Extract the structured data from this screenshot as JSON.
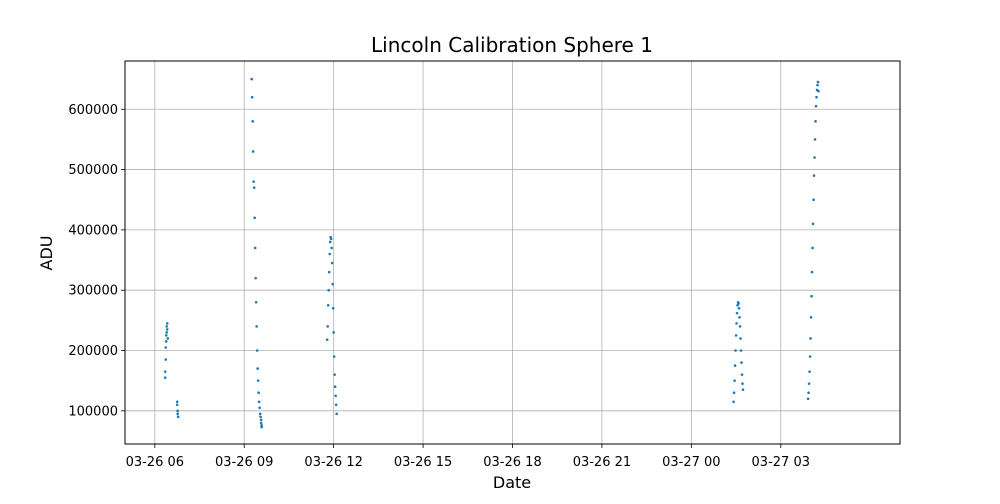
{
  "chart_data": {
    "type": "scatter",
    "title": "Lincoln Calibration Sphere 1",
    "xlabel": "Date",
    "ylabel": "ADU",
    "x_axis_type": "datetime",
    "xlim": [
      "2024-03-26 05:00",
      "2024-03-27 07:00"
    ],
    "ylim": [
      45000,
      680000
    ],
    "grid": true,
    "marker_color": "#1f77b4",
    "x_ticks": [
      {
        "value": "2024-03-26 06:00",
        "label": "03-26 06"
      },
      {
        "value": "2024-03-26 09:00",
        "label": "03-26 09"
      },
      {
        "value": "2024-03-26 12:00",
        "label": "03-26 12"
      },
      {
        "value": "2024-03-26 15:00",
        "label": "03-26 15"
      },
      {
        "value": "2024-03-26 18:00",
        "label": "03-26 18"
      },
      {
        "value": "2024-03-26 21:00",
        "label": "03-26 21"
      },
      {
        "value": "2024-03-27 00:00",
        "label": "03-27 00"
      },
      {
        "value": "2024-03-27 03:00",
        "label": "03-27 03"
      }
    ],
    "y_ticks": [
      {
        "value": 100000,
        "label": "100000"
      },
      {
        "value": 200000,
        "label": "200000"
      },
      {
        "value": 300000,
        "label": "300000"
      },
      {
        "value": 400000,
        "label": "400000"
      },
      {
        "value": 500000,
        "label": "500000"
      },
      {
        "value": 600000,
        "label": "600000"
      }
    ],
    "series": [
      {
        "x": [
          "2024-03-26 06:21",
          "2024-03-26 06:21",
          "2024-03-26 06:22",
          "2024-03-26 06:22",
          "2024-03-26 06:23",
          "2024-03-26 06:23",
          "2024-03-26 06:24",
          "2024-03-26 06:24",
          "2024-03-26 06:25",
          "2024-03-26 06:25",
          "2024-03-26 06:26",
          "2024-03-26 06:45",
          "2024-03-26 06:45",
          "2024-03-26 06:46",
          "2024-03-26 06:46",
          "2024-03-26 06:47",
          "2024-03-26 09:15",
          "2024-03-26 09:16",
          "2024-03-26 09:17",
          "2024-03-26 09:18",
          "2024-03-26 09:19",
          "2024-03-26 09:20",
          "2024-03-26 09:21",
          "2024-03-26 09:22",
          "2024-03-26 09:23",
          "2024-03-26 09:24",
          "2024-03-26 09:25",
          "2024-03-26 09:26",
          "2024-03-26 09:27",
          "2024-03-26 09:28",
          "2024-03-26 09:29",
          "2024-03-26 09:30",
          "2024-03-26 09:31",
          "2024-03-26 09:32",
          "2024-03-26 09:33",
          "2024-03-26 09:34",
          "2024-03-26 09:34",
          "2024-03-26 09:35",
          "2024-03-26 09:35",
          "2024-03-26 11:47",
          "2024-03-26 11:48",
          "2024-03-26 11:49",
          "2024-03-26 11:50",
          "2024-03-26 11:51",
          "2024-03-26 11:52",
          "2024-03-26 11:53",
          "2024-03-26 11:54",
          "2024-03-26 11:55",
          "2024-03-26 11:56",
          "2024-03-26 11:57",
          "2024-03-26 11:58",
          "2024-03-26 11:59",
          "2024-03-26 12:00",
          "2024-03-26 12:01",
          "2024-03-26 12:02",
          "2024-03-26 12:03",
          "2024-03-26 12:04",
          "2024-03-26 12:05",
          "2024-03-26 12:06",
          "2024-03-27 01:25",
          "2024-03-27 01:26",
          "2024-03-27 01:27",
          "2024-03-27 01:28",
          "2024-03-27 01:29",
          "2024-03-27 01:30",
          "2024-03-27 01:31",
          "2024-03-27 01:32",
          "2024-03-27 01:33",
          "2024-03-27 01:34",
          "2024-03-27 01:35",
          "2024-03-27 01:36",
          "2024-03-27 01:37",
          "2024-03-27 01:38",
          "2024-03-27 01:39",
          "2024-03-27 01:40",
          "2024-03-27 01:41",
          "2024-03-27 01:42",
          "2024-03-27 01:43",
          "2024-03-27 01:44",
          "2024-03-27 03:55",
          "2024-03-27 03:56",
          "2024-03-27 03:57",
          "2024-03-27 03:58",
          "2024-03-27 03:59",
          "2024-03-27 04:00",
          "2024-03-27 04:01",
          "2024-03-27 04:02",
          "2024-03-27 04:03",
          "2024-03-27 04:04",
          "2024-03-27 04:05",
          "2024-03-27 04:06",
          "2024-03-27 04:07",
          "2024-03-27 04:08",
          "2024-03-27 04:09",
          "2024-03-27 04:10",
          "2024-03-27 04:11",
          "2024-03-27 04:12",
          "2024-03-27 04:13",
          "2024-03-27 04:14",
          "2024-03-27 04:15",
          "2024-03-27 04:16"
        ],
        "y": [
          155000,
          165000,
          185000,
          205000,
          215000,
          225000,
          230000,
          240000,
          245000,
          235000,
          220000,
          115000,
          110000,
          100000,
          95000,
          90000,
          650000,
          620000,
          580000,
          530000,
          480000,
          470000,
          420000,
          370000,
          320000,
          280000,
          240000,
          200000,
          170000,
          150000,
          130000,
          115000,
          105000,
          95000,
          90000,
          85000,
          80000,
          76000,
          73000,
          218000,
          240000,
          275000,
          300000,
          330000,
          360000,
          380000,
          388000,
          385000,
          370000,
          345000,
          310000,
          270000,
          230000,
          190000,
          160000,
          140000,
          125000,
          110000,
          95000,
          115000,
          130000,
          150000,
          175000,
          200000,
          225000,
          245000,
          262000,
          275000,
          280000,
          278000,
          270000,
          255000,
          240000,
          220000,
          200000,
          180000,
          160000,
          145000,
          135000,
          120000,
          130000,
          145000,
          165000,
          190000,
          220000,
          255000,
          290000,
          330000,
          370000,
          410000,
          450000,
          490000,
          520000,
          550000,
          580000,
          605000,
          620000,
          632000,
          640000,
          645000,
          630000
        ]
      }
    ]
  }
}
